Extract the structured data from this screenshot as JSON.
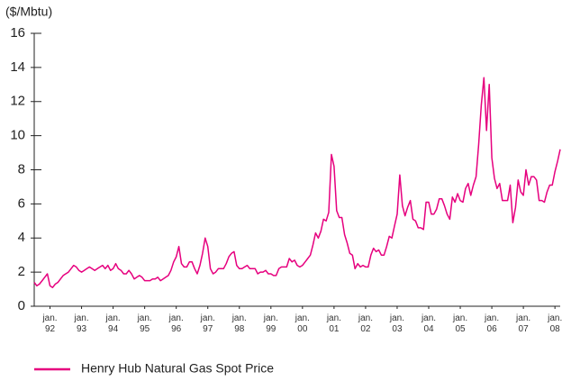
{
  "chart_data": {
    "type": "line",
    "y_label": "($/Mbtu)",
    "x": [
      "1991-07",
      "1991-08",
      "1991-09",
      "1991-10",
      "1991-11",
      "1991-12",
      "1992-01",
      "1992-02",
      "1992-03",
      "1992-04",
      "1992-05",
      "1992-06",
      "1992-07",
      "1992-08",
      "1992-09",
      "1992-10",
      "1992-11",
      "1992-12",
      "1993-01",
      "1993-02",
      "1993-03",
      "1993-04",
      "1993-05",
      "1993-06",
      "1993-07",
      "1993-08",
      "1993-09",
      "1993-10",
      "1993-11",
      "1993-12",
      "1994-01",
      "1994-02",
      "1994-03",
      "1994-04",
      "1994-05",
      "1994-06",
      "1994-07",
      "1994-08",
      "1994-09",
      "1994-10",
      "1994-11",
      "1994-12",
      "1995-01",
      "1995-02",
      "1995-03",
      "1995-04",
      "1995-05",
      "1995-06",
      "1995-07",
      "1995-08",
      "1995-09",
      "1995-10",
      "1995-11",
      "1995-12",
      "1996-01",
      "1996-02",
      "1996-03",
      "1996-04",
      "1996-05",
      "1996-06",
      "1996-07",
      "1996-08",
      "1996-09",
      "1996-10",
      "1996-11",
      "1996-12",
      "1997-01",
      "1997-02",
      "1997-03",
      "1997-04",
      "1997-05",
      "1997-06",
      "1997-07",
      "1997-08",
      "1997-09",
      "1997-10",
      "1997-11",
      "1997-12",
      "1998-01",
      "1998-02",
      "1998-03",
      "1998-04",
      "1998-05",
      "1998-06",
      "1998-07",
      "1998-08",
      "1998-09",
      "1998-10",
      "1998-11",
      "1998-12",
      "1999-01",
      "1999-02",
      "1999-03",
      "1999-04",
      "1999-05",
      "1999-06",
      "1999-07",
      "1999-08",
      "1999-09",
      "1999-10",
      "1999-11",
      "1999-12",
      "2000-01",
      "2000-02",
      "2000-03",
      "2000-04",
      "2000-05",
      "2000-06",
      "2000-07",
      "2000-08",
      "2000-09",
      "2000-10",
      "2000-11",
      "2000-12",
      "2001-01",
      "2001-02",
      "2001-03",
      "2001-04",
      "2001-05",
      "2001-06",
      "2001-07",
      "2001-08",
      "2001-09",
      "2001-10",
      "2001-11",
      "2001-12",
      "2002-01",
      "2002-02",
      "2002-03",
      "2002-04",
      "2002-05",
      "2002-06",
      "2002-07",
      "2002-08",
      "2002-09",
      "2002-10",
      "2002-11",
      "2002-12",
      "2003-01",
      "2003-02",
      "2003-03",
      "2003-04",
      "2003-05",
      "2003-06",
      "2003-07",
      "2003-08",
      "2003-09",
      "2003-10",
      "2003-11",
      "2003-12",
      "2004-01",
      "2004-02",
      "2004-03",
      "2004-04",
      "2004-05",
      "2004-06",
      "2004-07",
      "2004-08",
      "2004-09",
      "2004-10",
      "2004-11",
      "2004-12",
      "2005-01",
      "2005-02",
      "2005-03",
      "2005-04",
      "2005-05",
      "2005-06",
      "2005-07",
      "2005-08",
      "2005-09",
      "2005-10",
      "2005-11",
      "2005-12",
      "2006-01",
      "2006-02",
      "2006-03",
      "2006-04",
      "2006-05",
      "2006-06",
      "2006-07",
      "2006-08",
      "2006-09",
      "2006-10",
      "2006-11",
      "2006-12",
      "2007-01",
      "2007-02",
      "2007-03",
      "2007-04",
      "2007-05",
      "2007-06",
      "2007-07",
      "2007-08",
      "2007-09",
      "2007-10",
      "2007-11",
      "2007-12",
      "2008-01",
      "2008-02",
      "2008-03"
    ],
    "series": [
      {
        "name": "Henry Hub Natural Gas Spot Price",
        "color": "#e6007e",
        "values": [
          1.4,
          1.2,
          1.3,
          1.5,
          1.7,
          1.9,
          1.2,
          1.1,
          1.3,
          1.4,
          1.6,
          1.8,
          1.9,
          2.0,
          2.2,
          2.4,
          2.3,
          2.1,
          2.0,
          2.1,
          2.2,
          2.3,
          2.2,
          2.1,
          2.2,
          2.3,
          2.4,
          2.2,
          2.4,
          2.1,
          2.2,
          2.5,
          2.2,
          2.1,
          1.9,
          1.9,
          2.1,
          1.9,
          1.6,
          1.7,
          1.8,
          1.7,
          1.5,
          1.5,
          1.5,
          1.6,
          1.6,
          1.7,
          1.5,
          1.6,
          1.7,
          1.8,
          2.1,
          2.6,
          2.9,
          3.5,
          2.5,
          2.3,
          2.3,
          2.6,
          2.6,
          2.2,
          1.9,
          2.4,
          3.1,
          4.0,
          3.5,
          2.2,
          1.9,
          2.0,
          2.2,
          2.2,
          2.2,
          2.5,
          2.9,
          3.1,
          3.2,
          2.4,
          2.2,
          2.2,
          2.3,
          2.4,
          2.2,
          2.2,
          2.2,
          1.9,
          2.0,
          2.0,
          2.1,
          1.9,
          1.9,
          1.8,
          1.8,
          2.2,
          2.3,
          2.3,
          2.3,
          2.8,
          2.6,
          2.7,
          2.4,
          2.3,
          2.4,
          2.6,
          2.8,
          3.0,
          3.6,
          4.3,
          4.0,
          4.4,
          5.1,
          5.0,
          5.5,
          8.9,
          8.2,
          5.6,
          5.2,
          5.2,
          4.2,
          3.7,
          3.1,
          3.0,
          2.2,
          2.5,
          2.3,
          2.4,
          2.3,
          2.3,
          3.0,
          3.4,
          3.2,
          3.3,
          3.0,
          3.0,
          3.5,
          4.1,
          4.0,
          4.7,
          5.4,
          7.7,
          5.9,
          5.3,
          5.8,
          6.2,
          5.1,
          5.0,
          4.6,
          4.6,
          4.5,
          6.1,
          6.1,
          5.4,
          5.4,
          5.7,
          6.3,
          6.3,
          5.9,
          5.4,
          5.1,
          6.4,
          6.1,
          6.6,
          6.2,
          6.1,
          6.9,
          7.2,
          6.5,
          7.1,
          7.6,
          9.5,
          11.8,
          13.4,
          10.3,
          13.0,
          8.7,
          7.5,
          6.9,
          7.2,
          6.2,
          6.2,
          6.2,
          7.1,
          4.9,
          5.8,
          7.4,
          6.7,
          6.5,
          8.0,
          7.1,
          7.6,
          7.6,
          7.4,
          6.2,
          6.2,
          6.1,
          6.7,
          7.1,
          7.1,
          7.9,
          8.5,
          9.2
        ]
      }
    ],
    "xlim": [
      "1991-07",
      "2008-03"
    ],
    "xticks": [
      {
        "value": "1992-01",
        "label": "jan. 92"
      },
      {
        "value": "1993-01",
        "label": "jan. 93"
      },
      {
        "value": "1994-01",
        "label": "jan. 94"
      },
      {
        "value": "1995-01",
        "label": "jan. 95"
      },
      {
        "value": "1996-01",
        "label": "jan. 96"
      },
      {
        "value": "1997-01",
        "label": "jan. 97"
      },
      {
        "value": "1998-01",
        "label": "jan. 98"
      },
      {
        "value": "1999-01",
        "label": "jan. 99"
      },
      {
        "value": "2000-01",
        "label": "jan. 00"
      },
      {
        "value": "2001-01",
        "label": "jan. 01"
      },
      {
        "value": "2002-01",
        "label": "jan. 02"
      },
      {
        "value": "2003-01",
        "label": "jan. 03"
      },
      {
        "value": "2004-01",
        "label": "jan. 04"
      },
      {
        "value": "2005-01",
        "label": "jan. 05"
      },
      {
        "value": "2006-01",
        "label": "jan. 06"
      },
      {
        "value": "2007-01",
        "label": "jan. 07"
      },
      {
        "value": "2008-01",
        "label": "jan. 08"
      }
    ],
    "ylim": [
      0,
      16
    ],
    "yticks": [
      0,
      2,
      4,
      6,
      8,
      10,
      12,
      14,
      16
    ],
    "legend": "bottom-left"
  }
}
